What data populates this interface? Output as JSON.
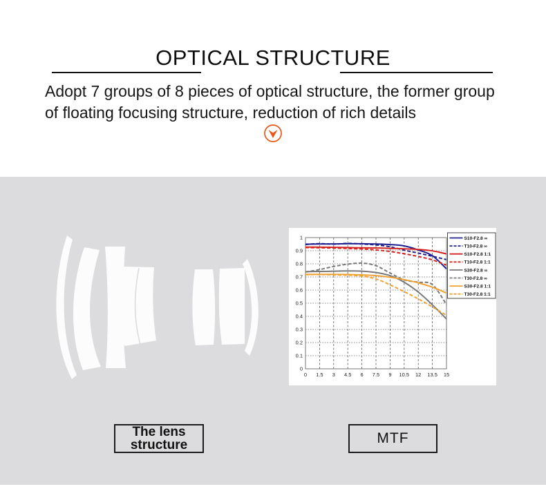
{
  "header": {
    "title": "OPTICAL STRUCTURE",
    "subtitle_line1": "Adopt 7 groups of 8 pieces of optical structure, the former group",
    "subtitle_line2": "of floating focusing structure, reduction of rich details",
    "accent_color": "#e8571a"
  },
  "panel": {
    "background": "#dcdcde",
    "lens_label_line1": "The lens",
    "lens_label_line2": "structure",
    "mtf_label": "MTF"
  },
  "chart_data": {
    "type": "line",
    "title": "MTF",
    "xlabel": "",
    "ylabel": "",
    "xlim": [
      0,
      15
    ],
    "ylim": [
      0,
      1
    ],
    "grid": true,
    "legend_position": "top-right",
    "x_tick_labels": [
      "0",
      "1.5",
      "3",
      "4.5",
      "6",
      "7.5",
      "9",
      "10.5",
      "12",
      "13.5",
      "15"
    ],
    "x_tick_values": [
      0,
      1.5,
      3,
      4.5,
      6,
      7.5,
      9,
      10.5,
      12,
      13.5,
      15
    ],
    "y_tick_labels": [
      "0",
      "0.1",
      "0.2",
      "0.3",
      "0.4",
      "0.5",
      "0.6",
      "0.7",
      "0.8",
      "0.9",
      "1"
    ],
    "y_tick_values": [
      0,
      0.1,
      0.2,
      0.3,
      0.4,
      0.5,
      0.6,
      0.7,
      0.8,
      0.9,
      1
    ],
    "x": [
      0,
      1.5,
      3,
      4.5,
      6,
      7.5,
      9,
      10.5,
      12,
      13.5,
      15
    ],
    "series": [
      {
        "name": "S10-F2.8 ∞",
        "color": "#1e1f90",
        "style": "solid",
        "values": [
          0.95,
          0.951,
          0.952,
          0.953,
          0.953,
          0.951,
          0.947,
          0.937,
          0.906,
          0.862,
          0.762
        ]
      },
      {
        "name": "T10-F2.8 ∞",
        "color": "#1e1f90",
        "style": "dashed",
        "values": [
          0.947,
          0.954,
          0.95,
          0.956,
          0.951,
          0.944,
          0.93,
          0.904,
          0.882,
          0.858,
          0.832
        ]
      },
      {
        "name": "S10-F2.8 1:1",
        "color": "#d42320",
        "style": "solid",
        "values": [
          0.928,
          0.927,
          0.926,
          0.924,
          0.922,
          0.921,
          0.918,
          0.915,
          0.91,
          0.899,
          0.876
        ]
      },
      {
        "name": "T10-F2.8 1:1",
        "color": "#d42320",
        "style": "dashed",
        "values": [
          0.924,
          0.922,
          0.92,
          0.917,
          0.913,
          0.906,
          0.894,
          0.877,
          0.856,
          0.83,
          0.79
        ]
      },
      {
        "name": "S30-F2.8 ∞",
        "color": "#787878",
        "style": "solid",
        "values": [
          0.74,
          0.742,
          0.744,
          0.746,
          0.744,
          0.734,
          0.71,
          0.66,
          0.585,
          0.488,
          0.38
        ]
      },
      {
        "name": "T30-F2.8 ∞",
        "color": "#787878",
        "style": "dashed",
        "values": [
          0.738,
          0.756,
          0.78,
          0.798,
          0.806,
          0.786,
          0.73,
          0.678,
          0.66,
          0.642,
          0.49
        ]
      },
      {
        "name": "S30-F2.8 1:1",
        "color": "#efa233",
        "style": "solid",
        "values": [
          0.72,
          0.72,
          0.72,
          0.719,
          0.716,
          0.71,
          0.698,
          0.68,
          0.655,
          0.622,
          0.578
        ]
      },
      {
        "name": "T30-F2.8 1:1",
        "color": "#efa233",
        "style": "dashed",
        "values": [
          0.718,
          0.718,
          0.716,
          0.713,
          0.707,
          0.685,
          0.64,
          0.588,
          0.533,
          0.472,
          0.408
        ]
      }
    ]
  }
}
